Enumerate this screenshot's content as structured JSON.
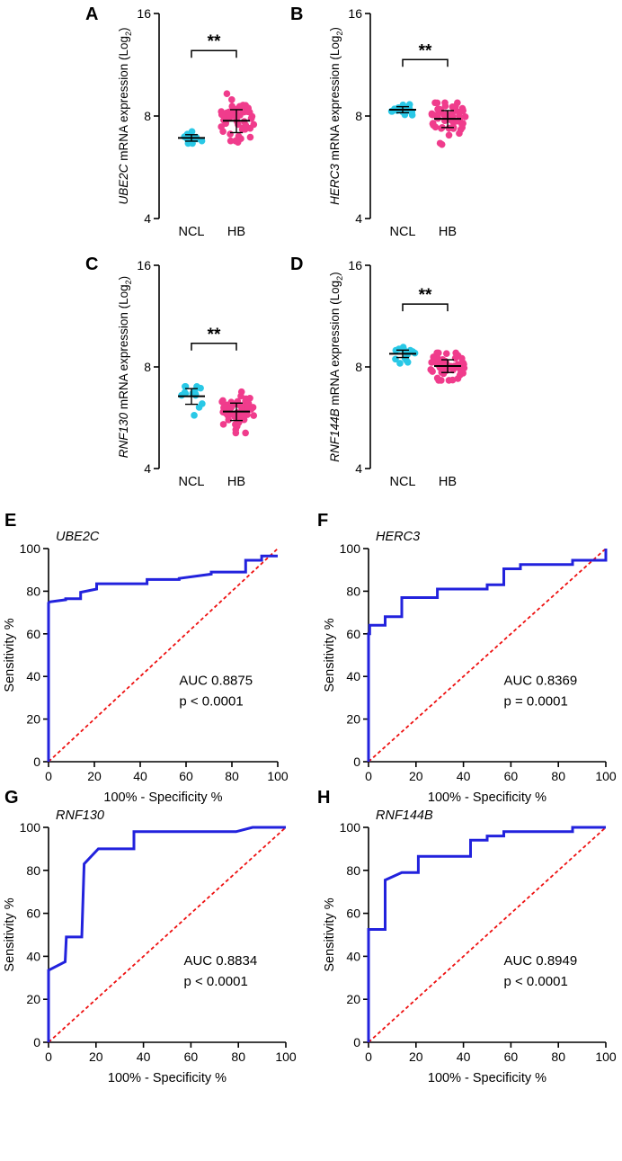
{
  "colors": {
    "ncl": "#29c8e6",
    "hb": "#f03c8c",
    "roc_line": "#2222dd",
    "reference_line": "#ee1111",
    "axis": "#000000"
  },
  "chart_data": [
    {
      "panel_label": "A",
      "type": "scatter",
      "gene": "UBE2C",
      "ylabel_gene": "UBE2C",
      "ylabel_rest": " mRNA expression (Log",
      "ylabel_sub": "2",
      "ylabel_close": ")",
      "yscale": "log2",
      "ylim": [
        4,
        16
      ],
      "yticks": [
        "4",
        "8",
        "16"
      ],
      "ytick_values": [
        4,
        8,
        16
      ],
      "categories": [
        "NCL",
        "HB"
      ],
      "significance": "**",
      "groups": [
        {
          "name": "NCL",
          "n": 14,
          "mean": 6.9,
          "sd": 0.15,
          "min": 6.65,
          "max": 7.2
        },
        {
          "name": "HB",
          "n": 52,
          "mean": 7.75,
          "sd": 0.6,
          "min": 6.7,
          "max": 9.3
        }
      ]
    },
    {
      "panel_label": "B",
      "type": "scatter",
      "gene": "HERC3",
      "ylabel_gene": "HERC3",
      "ylabel_rest": " mRNA expression (Log",
      "ylabel_sub": "2",
      "ylabel_close": ")",
      "yscale": "log2",
      "ylim": [
        4,
        16
      ],
      "yticks": [
        "4",
        "8",
        "16"
      ],
      "ytick_values": [
        4,
        8,
        16
      ],
      "categories": [
        "NCL",
        "HB"
      ],
      "significance": "**",
      "groups": [
        {
          "name": "NCL",
          "n": 14,
          "mean": 8.35,
          "sd": 0.17,
          "min": 8.05,
          "max": 8.65
        },
        {
          "name": "HB",
          "n": 52,
          "mean": 7.85,
          "sd": 0.45,
          "min": 6.6,
          "max": 8.75
        }
      ]
    },
    {
      "panel_label": "C",
      "type": "scatter",
      "gene": "RNF130",
      "ylabel_gene": "RNF130",
      "ylabel_rest": " mRNA expression (Log",
      "ylabel_sub": "2",
      "ylabel_close": ")",
      "yscale": "log2",
      "ylim": [
        4,
        16
      ],
      "yticks": [
        "4",
        "8",
        "16"
      ],
      "ytick_values": [
        4,
        8,
        16
      ],
      "categories": [
        "NCL",
        "HB"
      ],
      "significance": "**",
      "groups": [
        {
          "name": "NCL",
          "n": 14,
          "mean": 6.55,
          "sd": 0.35,
          "min": 5.75,
          "max": 7.0
        },
        {
          "name": "HB",
          "n": 52,
          "mean": 5.9,
          "sd": 0.35,
          "min": 5.1,
          "max": 6.75
        }
      ]
    },
    {
      "panel_label": "D",
      "type": "scatter",
      "gene": "RNF144B",
      "ylabel_gene": "RNF144B",
      "ylabel_rest": " mRNA expression (Log",
      "ylabel_sub": "2",
      "ylabel_close": ")",
      "yscale": "log2",
      "ylim": [
        4,
        16
      ],
      "yticks": [
        "4",
        "8",
        "16"
      ],
      "ytick_values": [
        4,
        8,
        16
      ],
      "categories": [
        "NCL",
        "HB"
      ],
      "significance": "**",
      "groups": [
        {
          "name": "NCL",
          "n": 14,
          "mean": 8.75,
          "sd": 0.22,
          "min": 8.2,
          "max": 9.15
        },
        {
          "name": "HB",
          "n": 52,
          "mean": 8.05,
          "sd": 0.35,
          "min": 7.3,
          "max": 8.8
        }
      ]
    },
    {
      "panel_label": "E",
      "type": "line",
      "gene": "UBE2C",
      "title": "UBE2C",
      "xlabel": "100% - Specificity %",
      "ylabel": "Sensitivity %",
      "xlim": [
        0,
        100
      ],
      "ylim": [
        0,
        100
      ],
      "xticks": [
        "0",
        "20",
        "40",
        "60",
        "80",
        "100"
      ],
      "yticks": [
        "0",
        "20",
        "40",
        "60",
        "80",
        "100"
      ],
      "auc_text": "AUC 0.8875",
      "p_text": "p < 0.0001",
      "roc_x": [
        0,
        0,
        0,
        0.5,
        7.5,
        7.5,
        14,
        14,
        21,
        21,
        43,
        43,
        57,
        57,
        71,
        71,
        86,
        86,
        93,
        93,
        100
      ],
      "roc_y": [
        0,
        72,
        74.5,
        75,
        76,
        76.5,
        76.5,
        79.5,
        81,
        83.5,
        83.5,
        85.5,
        85.5,
        86,
        88,
        89,
        89,
        94.5,
        94.5,
        96.5,
        96.5
      ],
      "reference_x": [
        0,
        100
      ],
      "reference_y": [
        0,
        100
      ]
    },
    {
      "panel_label": "F",
      "type": "line",
      "gene": "HERC3",
      "title": "HERC3",
      "xlabel": "100% - Specificity %",
      "ylabel": "Sensitivity %",
      "xlim": [
        0,
        100
      ],
      "ylim": [
        0,
        100
      ],
      "xticks": [
        "0",
        "20",
        "40",
        "60",
        "80",
        "100"
      ],
      "yticks": [
        "0",
        "20",
        "40",
        "60",
        "80",
        "100"
      ],
      "auc_text": "AUC 0.8369",
      "p_text": "p = 0.0001",
      "roc_x": [
        0,
        0,
        0.5,
        0.5,
        7,
        7,
        14,
        14,
        29,
        29,
        50,
        50,
        57,
        57,
        64,
        64,
        86,
        86,
        100,
        100
      ],
      "roc_y": [
        0,
        60,
        60,
        64,
        64,
        68,
        68,
        77,
        77,
        81,
        81,
        83,
        83,
        90.5,
        90.5,
        92.5,
        92.5,
        94.5,
        94.5,
        100
      ],
      "reference_x": [
        0,
        100
      ],
      "reference_y": [
        0,
        100
      ]
    },
    {
      "panel_label": "G",
      "type": "line",
      "gene": "RNF130",
      "title": "RNF130",
      "xlabel": "100% - Specificity %",
      "ylabel": "Sensitivity %",
      "xlim": [
        0,
        100
      ],
      "ylim": [
        0,
        100
      ],
      "xticks": [
        "0",
        "20",
        "40",
        "60",
        "80",
        "100"
      ],
      "yticks": [
        "0",
        "20",
        "40",
        "60",
        "80",
        "100"
      ],
      "auc_text": "AUC 0.8834",
      "p_text": "p < 0.0001",
      "roc_x": [
        0,
        0,
        0,
        7,
        7,
        7.5,
        14,
        15,
        15,
        21,
        21,
        36,
        36,
        79,
        86,
        86,
        100
      ],
      "roc_y": [
        0,
        33.5,
        33.5,
        37.5,
        37.5,
        49,
        49,
        83,
        83,
        90,
        90,
        90,
        98,
        98,
        100,
        100,
        100
      ],
      "reference_x": [
        0,
        100
      ],
      "reference_y": [
        0,
        100
      ]
    },
    {
      "panel_label": "H",
      "type": "line",
      "gene": "RNF144B",
      "title": "RNF144B",
      "xlabel": "100% - Specificity %",
      "ylabel": "Sensitivity %",
      "xlim": [
        0,
        100
      ],
      "ylim": [
        0,
        100
      ],
      "xticks": [
        "0",
        "20",
        "40",
        "60",
        "80",
        "100"
      ],
      "yticks": [
        "0",
        "20",
        "40",
        "60",
        "80",
        "100"
      ],
      "auc_text": "AUC 0.8949",
      "p_text": "p < 0.0001",
      "roc_x": [
        0,
        0,
        7,
        7,
        14,
        14,
        21,
        21,
        43,
        43,
        50,
        50,
        57,
        57,
        86,
        86,
        100
      ],
      "roc_y": [
        0,
        52.5,
        52.5,
        75.5,
        79,
        79,
        79,
        86.5,
        86.5,
        94,
        94,
        96,
        96,
        98,
        98,
        100,
        100
      ],
      "reference_x": [
        0,
        100
      ],
      "reference_y": [
        0,
        100
      ]
    }
  ]
}
